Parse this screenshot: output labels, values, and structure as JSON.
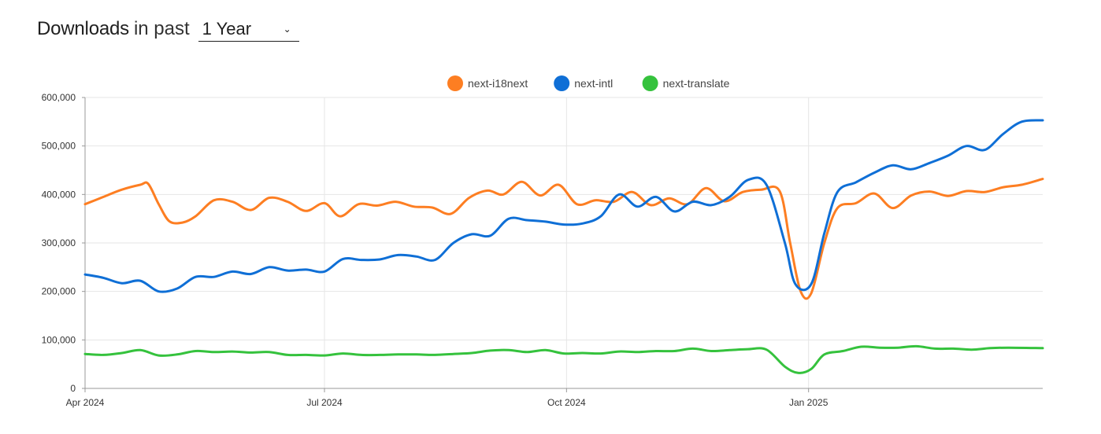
{
  "header": {
    "title_strong": "Downloads",
    "title_light": "in past",
    "period_selected": "1 Year",
    "chevron_icon": "chevron-down-icon"
  },
  "chart_data": {
    "type": "line",
    "title": "",
    "xlabel": "",
    "ylabel": "",
    "ylim": [
      0,
      600000
    ],
    "y_ticks": [
      0,
      100000,
      200000,
      300000,
      400000,
      500000,
      600000
    ],
    "y_tick_labels": [
      "0",
      "100,000",
      "200,000",
      "300,000",
      "400,000",
      "500,000",
      "600,000"
    ],
    "x_ticks": [
      "2024-04-01",
      "2024-07-01",
      "2024-10-01",
      "2025-01-01"
    ],
    "x_tick_labels": [
      "Apr 2024",
      "Jul 2024",
      "Oct 2024",
      "Jan 2025"
    ],
    "x_range": [
      "2024-04-01",
      "2025-03-31"
    ],
    "grid": true,
    "legend_position": "top-center",
    "series": [
      {
        "name": "next-i18next",
        "color": "#fd7e22",
        "points": [
          [
            "2024-04-01",
            380000
          ],
          [
            "2024-04-08",
            395000
          ],
          [
            "2024-04-15",
            410000
          ],
          [
            "2024-04-22",
            420000
          ],
          [
            "2024-04-25",
            422000
          ],
          [
            "2024-04-29",
            380000
          ],
          [
            "2024-05-03",
            345000
          ],
          [
            "2024-05-08",
            342000
          ],
          [
            "2024-05-13",
            355000
          ],
          [
            "2024-05-20",
            388000
          ],
          [
            "2024-05-27",
            385000
          ],
          [
            "2024-06-03",
            368000
          ],
          [
            "2024-06-10",
            393000
          ],
          [
            "2024-06-17",
            385000
          ],
          [
            "2024-06-24",
            366000
          ],
          [
            "2024-07-01",
            382000
          ],
          [
            "2024-07-07",
            355000
          ],
          [
            "2024-07-14",
            380000
          ],
          [
            "2024-07-21",
            377000
          ],
          [
            "2024-07-28",
            385000
          ],
          [
            "2024-08-04",
            375000
          ],
          [
            "2024-08-11",
            373000
          ],
          [
            "2024-08-18",
            360000
          ],
          [
            "2024-08-25",
            393000
          ],
          [
            "2024-09-01",
            408000
          ],
          [
            "2024-09-07",
            400000
          ],
          [
            "2024-09-14",
            426000
          ],
          [
            "2024-09-21",
            398000
          ],
          [
            "2024-09-28",
            420000
          ],
          [
            "2024-10-05",
            380000
          ],
          [
            "2024-10-12",
            388000
          ],
          [
            "2024-10-19",
            385000
          ],
          [
            "2024-10-26",
            405000
          ],
          [
            "2024-11-02",
            378000
          ],
          [
            "2024-11-09",
            392000
          ],
          [
            "2024-11-16",
            380000
          ],
          [
            "2024-11-23",
            413000
          ],
          [
            "2024-11-30",
            386000
          ],
          [
            "2024-12-07",
            405000
          ],
          [
            "2024-12-14",
            410000
          ],
          [
            "2024-12-21",
            407000
          ],
          [
            "2024-12-25",
            300000
          ],
          [
            "2024-12-29",
            200000
          ],
          [
            "2025-01-02",
            196000
          ],
          [
            "2025-01-07",
            300000
          ],
          [
            "2025-01-12",
            372000
          ],
          [
            "2025-01-19",
            382000
          ],
          [
            "2025-01-26",
            402000
          ],
          [
            "2025-02-02",
            372000
          ],
          [
            "2025-02-09",
            398000
          ],
          [
            "2025-02-16",
            406000
          ],
          [
            "2025-02-23",
            397000
          ],
          [
            "2025-03-02",
            407000
          ],
          [
            "2025-03-09",
            405000
          ],
          [
            "2025-03-16",
            415000
          ],
          [
            "2025-03-23",
            420000
          ],
          [
            "2025-03-31",
            432000
          ]
        ]
      },
      {
        "name": "next-intl",
        "color": "#0f6fd6",
        "points": [
          [
            "2024-04-01",
            235000
          ],
          [
            "2024-04-08",
            228000
          ],
          [
            "2024-04-15",
            217000
          ],
          [
            "2024-04-22",
            222000
          ],
          [
            "2024-04-29",
            200000
          ],
          [
            "2024-05-06",
            206000
          ],
          [
            "2024-05-13",
            230000
          ],
          [
            "2024-05-20",
            230000
          ],
          [
            "2024-05-27",
            241000
          ],
          [
            "2024-06-03",
            236000
          ],
          [
            "2024-06-10",
            250000
          ],
          [
            "2024-06-17",
            243000
          ],
          [
            "2024-06-24",
            245000
          ],
          [
            "2024-07-01",
            241000
          ],
          [
            "2024-07-08",
            267000
          ],
          [
            "2024-07-15",
            265000
          ],
          [
            "2024-07-22",
            266000
          ],
          [
            "2024-07-29",
            275000
          ],
          [
            "2024-08-05",
            272000
          ],
          [
            "2024-08-12",
            265000
          ],
          [
            "2024-08-19",
            300000
          ],
          [
            "2024-08-26",
            318000
          ],
          [
            "2024-09-02",
            315000
          ],
          [
            "2024-09-09",
            350000
          ],
          [
            "2024-09-16",
            347000
          ],
          [
            "2024-09-23",
            344000
          ],
          [
            "2024-09-30",
            338000
          ],
          [
            "2024-10-07",
            340000
          ],
          [
            "2024-10-14",
            355000
          ],
          [
            "2024-10-21",
            400000
          ],
          [
            "2024-10-28",
            375000
          ],
          [
            "2024-11-04",
            395000
          ],
          [
            "2024-11-11",
            365000
          ],
          [
            "2024-11-18",
            385000
          ],
          [
            "2024-11-25",
            378000
          ],
          [
            "2024-12-02",
            395000
          ],
          [
            "2024-12-09",
            430000
          ],
          [
            "2024-12-16",
            420000
          ],
          [
            "2024-12-23",
            300000
          ],
          [
            "2024-12-27",
            215000
          ],
          [
            "2025-01-02",
            215000
          ],
          [
            "2025-01-07",
            320000
          ],
          [
            "2025-01-12",
            405000
          ],
          [
            "2025-01-19",
            425000
          ],
          [
            "2025-01-26",
            445000
          ],
          [
            "2025-02-02",
            460000
          ],
          [
            "2025-02-09",
            452000
          ],
          [
            "2025-02-16",
            465000
          ],
          [
            "2025-02-23",
            480000
          ],
          [
            "2025-03-02",
            500000
          ],
          [
            "2025-03-09",
            492000
          ],
          [
            "2025-03-16",
            525000
          ],
          [
            "2025-03-23",
            550000
          ],
          [
            "2025-03-31",
            553000
          ]
        ]
      },
      {
        "name": "next-translate",
        "color": "#35c23d",
        "points": [
          [
            "2024-04-01",
            71000
          ],
          [
            "2024-04-08",
            69000
          ],
          [
            "2024-04-15",
            73000
          ],
          [
            "2024-04-22",
            79000
          ],
          [
            "2024-04-29",
            68000
          ],
          [
            "2024-05-06",
            70000
          ],
          [
            "2024-05-13",
            77000
          ],
          [
            "2024-05-20",
            75000
          ],
          [
            "2024-05-27",
            76000
          ],
          [
            "2024-06-03",
            74000
          ],
          [
            "2024-06-10",
            75000
          ],
          [
            "2024-06-17",
            69000
          ],
          [
            "2024-06-24",
            69000
          ],
          [
            "2024-07-01",
            68000
          ],
          [
            "2024-07-08",
            72000
          ],
          [
            "2024-07-15",
            69000
          ],
          [
            "2024-07-22",
            69000
          ],
          [
            "2024-07-29",
            70000
          ],
          [
            "2024-08-05",
            70000
          ],
          [
            "2024-08-12",
            69000
          ],
          [
            "2024-08-19",
            71000
          ],
          [
            "2024-08-26",
            73000
          ],
          [
            "2024-09-02",
            78000
          ],
          [
            "2024-09-09",
            79000
          ],
          [
            "2024-09-16",
            75000
          ],
          [
            "2024-09-23",
            79000
          ],
          [
            "2024-09-30",
            72000
          ],
          [
            "2024-10-07",
            73000
          ],
          [
            "2024-10-14",
            72000
          ],
          [
            "2024-10-21",
            76000
          ],
          [
            "2024-10-28",
            75000
          ],
          [
            "2024-11-04",
            77000
          ],
          [
            "2024-11-11",
            77000
          ],
          [
            "2024-11-18",
            82000
          ],
          [
            "2024-11-25",
            77000
          ],
          [
            "2024-12-02",
            79000
          ],
          [
            "2024-12-09",
            81000
          ],
          [
            "2024-12-16",
            80000
          ],
          [
            "2024-12-23",
            45000
          ],
          [
            "2024-12-28",
            32000
          ],
          [
            "2025-01-02",
            40000
          ],
          [
            "2025-01-07",
            70000
          ],
          [
            "2025-01-14",
            77000
          ],
          [
            "2025-01-21",
            86000
          ],
          [
            "2025-01-28",
            84000
          ],
          [
            "2025-02-04",
            84000
          ],
          [
            "2025-02-11",
            87000
          ],
          [
            "2025-02-18",
            82000
          ],
          [
            "2025-02-25",
            82000
          ],
          [
            "2025-03-04",
            80000
          ],
          [
            "2025-03-11",
            83000
          ],
          [
            "2025-03-18",
            84000
          ],
          [
            "2025-03-31",
            83000
          ]
        ]
      }
    ]
  }
}
